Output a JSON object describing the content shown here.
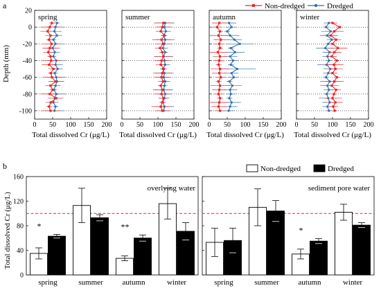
{
  "colors": {
    "non_dredged": "#e8262a",
    "dredged": "#2f6fae",
    "threshold": "#e8262a"
  },
  "chart_data": [
    {
      "type": "line",
      "panel_label": "a",
      "ylabel": "Depth (mm)",
      "xlabel": "Total dissolved Cr (μg/L)",
      "xlim": [
        0,
        200
      ],
      "ylim": [
        -110,
        20
      ],
      "xticks": [
        0,
        50,
        100,
        150,
        200
      ],
      "yticks": [
        20,
        0,
        -20,
        -40,
        -60,
        -80,
        -100
      ],
      "xtick_labels": [
        "0",
        "50",
        "100",
        "150",
        "200"
      ],
      "ytick_labels": [
        "20",
        "0",
        "-20",
        "-40",
        "-60",
        "-80",
        "-100"
      ],
      "grid": "dotted horizontal at tick depths",
      "legend": {
        "position": "top-right",
        "entries": [
          "Non-dredged",
          "Dredged"
        ]
      },
      "depths": [
        5,
        0,
        -5,
        -10,
        -15,
        -20,
        -25,
        -30,
        -35,
        -40,
        -45,
        -50,
        -55,
        -60,
        -65,
        -70,
        -75,
        -80,
        -85,
        -90,
        -95,
        -100
      ],
      "seasons": [
        {
          "name": "spring",
          "non_dredged": [
            48,
            42,
            36,
            44,
            40,
            47,
            42,
            38,
            44,
            46,
            40,
            52,
            45,
            48,
            58,
            44,
            50,
            42,
            60,
            45,
            40,
            44
          ],
          "dredged": [
            62,
            58,
            55,
            62,
            52,
            58,
            50,
            56,
            52,
            60,
            58,
            64,
            56,
            60,
            62,
            58,
            54,
            60,
            56,
            52,
            58,
            55
          ]
        },
        {
          "name": "summer",
          "non_dredged": [
            115,
            112,
            108,
            118,
            110,
            114,
            106,
            112,
            115,
            110,
            108,
            116,
            112,
            110,
            114,
            108,
            112,
            110,
            115,
            112,
            108,
            112
          ],
          "dredged": [
            120,
            118,
            122,
            116,
            120,
            118,
            114,
            120,
            116,
            118,
            120,
            114,
            118,
            116,
            120,
            118,
            116,
            120,
            118,
            114,
            118,
            116
          ]
        },
        {
          "name": "autumn",
          "non_dredged": [
            28,
            22,
            30,
            26,
            32,
            28,
            30,
            24,
            30,
            28,
            26,
            30,
            28,
            32,
            26,
            30,
            28,
            26,
            30,
            28,
            26,
            30
          ],
          "dredged": [
            55,
            62,
            50,
            58,
            70,
            85,
            60,
            72,
            58,
            66,
            60,
            78,
            62,
            68,
            56,
            64,
            58,
            60,
            56,
            62,
            58,
            54
          ]
        },
        {
          "name": "winter",
          "non_dredged": [
            100,
            120,
            105,
            95,
            110,
            100,
            115,
            105,
            98,
            112,
            104,
            108,
            100,
            112,
            105,
            98,
            110,
            104,
            100,
            108,
            102,
            106
          ],
          "dredged": [
            90,
            82,
            95,
            85,
            98,
            88,
            80,
            92,
            86,
            90,
            84,
            94,
            88,
            82,
            92,
            86,
            90,
            84,
            88,
            92,
            86,
            90
          ]
        }
      ]
    },
    {
      "type": "bar",
      "panel_label": "b",
      "ylabel": "Total dissolved Cr (μg/L)",
      "ylim": [
        0,
        160
      ],
      "yticks": [
        0,
        40,
        80,
        120,
        160
      ],
      "ytick_labels": [
        "0",
        "40",
        "80",
        "120",
        "160"
      ],
      "threshold": 100,
      "legend": {
        "position": "top-right",
        "entries": [
          "Non-dredged",
          "Dredged"
        ]
      },
      "categories": [
        "spring",
        "summer",
        "autumn",
        "winter"
      ],
      "subplots": [
        {
          "title": "overlying water",
          "series": [
            {
              "name": "Non-dredged",
              "values": [
                35,
                113,
                27,
                116
              ],
              "errors": [
                9,
                28,
                4,
                25
              ]
            },
            {
              "name": "Dredged",
              "values": [
                63,
                93,
                60,
                71
              ],
              "errors": [
                3,
                5,
                5,
                14
              ]
            }
          ],
          "annotations": [
            "*",
            "",
            "**",
            ""
          ]
        },
        {
          "title": "sediment pore water",
          "series": [
            {
              "name": "Non-dredged",
              "values": [
                53,
                110,
                34,
                102
              ],
              "errors": [
                23,
                30,
                8,
                13
              ]
            },
            {
              "name": "Dredged",
              "values": [
                56,
                104,
                55,
                81
              ],
              "errors": [
                20,
                17,
                4,
                4
              ]
            }
          ],
          "annotations": [
            "",
            "",
            "*",
            ""
          ]
        }
      ]
    }
  ]
}
